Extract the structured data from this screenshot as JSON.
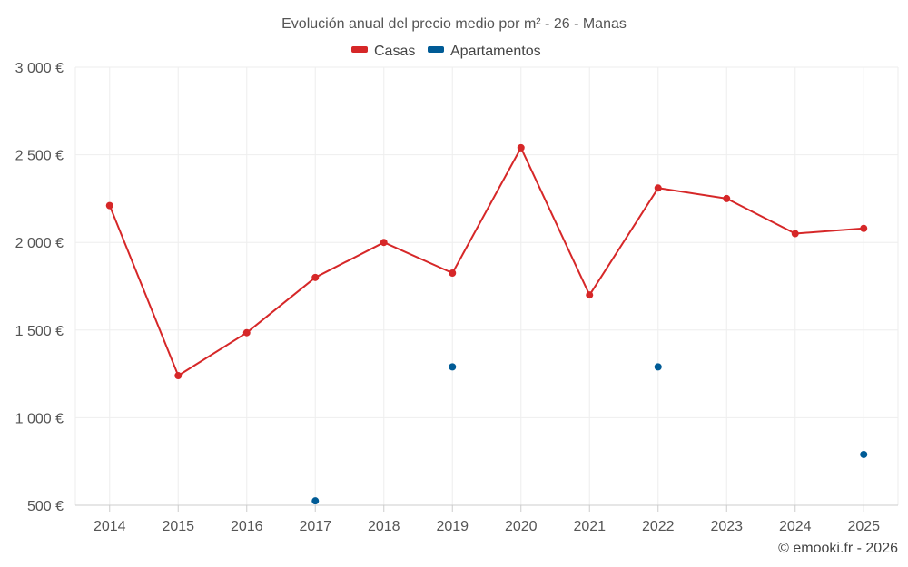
{
  "chart_data": {
    "type": "line",
    "title": "Evolución anual del precio medio por m² - 26 - Manas",
    "categories": [
      "2014",
      "2015",
      "2016",
      "2017",
      "2018",
      "2019",
      "2020",
      "2021",
      "2022",
      "2023",
      "2024",
      "2025"
    ],
    "series": [
      {
        "name": "Casas",
        "color": "#d62728",
        "style": "line-with-markers",
        "values": [
          2210,
          1240,
          1485,
          1800,
          2000,
          1825,
          2540,
          1700,
          2310,
          2250,
          2050,
          2080
        ]
      },
      {
        "name": "Apartamentos",
        "color": "#005b96",
        "style": "markers",
        "values": [
          null,
          null,
          null,
          525,
          null,
          1290,
          null,
          null,
          1290,
          null,
          null,
          790
        ]
      }
    ],
    "ylim": [
      500,
      3000
    ],
    "yticks": [
      500,
      1000,
      1500,
      2000,
      2500,
      3000
    ],
    "ytick_labels": [
      "500 €",
      "1 000 €",
      "1 500 €",
      "2 000 €",
      "2 500 €",
      "3 000 €"
    ],
    "xlabel": "",
    "ylabel": "",
    "grid": true,
    "legend_position": "top-center"
  },
  "credit": "© emooki.fr - 2026",
  "colors": {
    "grid": "#eeeeee",
    "axis": "#cccccc",
    "text": "#555555"
  }
}
